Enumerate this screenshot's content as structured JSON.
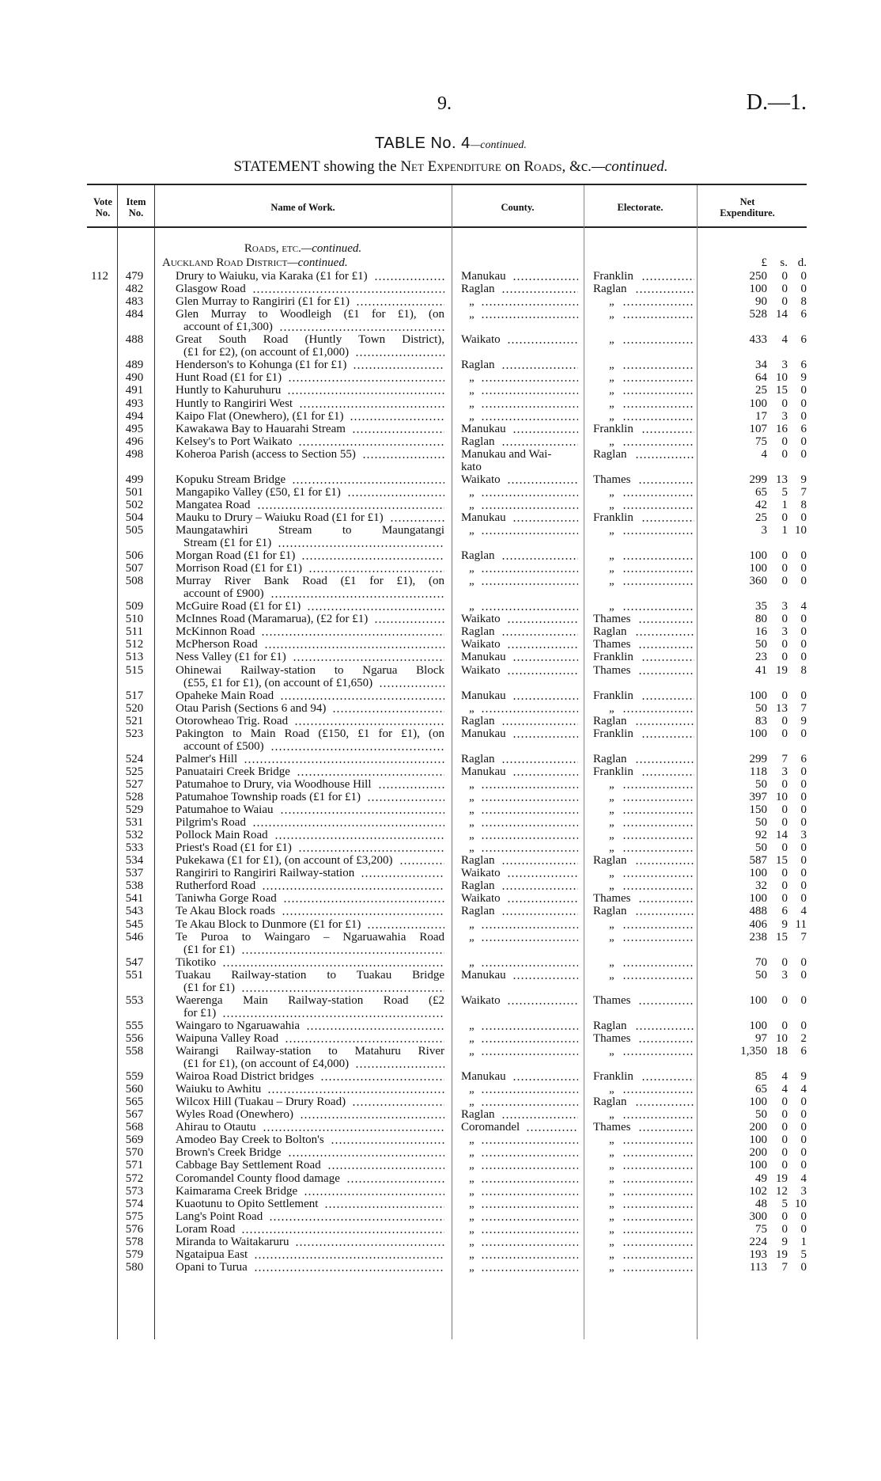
{
  "header": {
    "page_number": "9.",
    "doc_code": "D.—1."
  },
  "title": {
    "main": "TABLE No. 4",
    "suffix": "—continued."
  },
  "statement": {
    "lead": "STATEMENT showing the ",
    "sc1": "Net Expenditure",
    "mid": " on ",
    "sc2": "Roads",
    "tail": ", &c.",
    "cont": "—continued."
  },
  "columns": {
    "vote": "Vote No.",
    "item": "Item No.",
    "name": "Name of Work.",
    "county": "County.",
    "electorate": "Electorate.",
    "net": "Net Expenditure."
  },
  "section": {
    "heading": "Roads, etc.",
    "heading_cont": "—continued.",
    "district": "Auckland Road District",
    "district_cont": "—continued."
  },
  "units": {
    "pounds": "£",
    "shillings": "s.",
    "pence": "d."
  },
  "rows": [
    {
      "vote": "112",
      "item": "479",
      "name": [
        "Drury to Waiuku, via Karaka (£1 for £1)"
      ],
      "county": [
        "Manukau"
      ],
      "electorate": "Franklin",
      "l": "250",
      "s": "0",
      "d": "0"
    },
    {
      "item": "482",
      "name": [
        "Glasgow Road"
      ],
      "county": [
        "Raglan"
      ],
      "electorate": "Raglan",
      "l": "100",
      "s": "0",
      "d": "0"
    },
    {
      "item": "483",
      "name": [
        "Glen Murray to Rangiriri (£1 for £1)"
      ],
      "county": [
        "„"
      ],
      "electorate": "„",
      "l": "90",
      "s": "0",
      "d": "8"
    },
    {
      "item": "484",
      "name": [
        "Glen Murray to Woodleigh (£1 for £1), (on",
        "account of £1,300)"
      ],
      "county": [
        "„"
      ],
      "electorate": "„",
      "l": "528",
      "s": "14",
      "d": "6"
    },
    {
      "item": "488",
      "name": [
        "Great South Road (Huntly Town District),",
        "(£1 for £2), (on account of £1,000)"
      ],
      "county": [
        "Waikato"
      ],
      "electorate": "„",
      "l": "433",
      "s": "4",
      "d": "6"
    },
    {
      "item": "489",
      "name": [
        "Henderson's to Kohunga (£1 for £1)"
      ],
      "county": [
        "Raglan"
      ],
      "electorate": "„",
      "l": "34",
      "s": "3",
      "d": "6"
    },
    {
      "item": "490",
      "name": [
        "Hunt Road (£1 for £1)"
      ],
      "county": [
        "„"
      ],
      "electorate": "„",
      "l": "64",
      "s": "10",
      "d": "9"
    },
    {
      "item": "491",
      "name": [
        "Huntly to Kahuruhuru"
      ],
      "county": [
        "„"
      ],
      "electorate": "„",
      "l": "25",
      "s": "15",
      "d": "0"
    },
    {
      "item": "493",
      "name": [
        "Huntly to Rangiriri West"
      ],
      "county": [
        "„"
      ],
      "electorate": "„",
      "l": "100",
      "s": "0",
      "d": "0"
    },
    {
      "item": "494",
      "name": [
        "Kaipo Flat (Onewhero), (£1 for £1)"
      ],
      "county": [
        "„"
      ],
      "electorate": "„",
      "l": "17",
      "s": "3",
      "d": "0"
    },
    {
      "item": "495",
      "name": [
        "Kawakawa Bay to Hauarahi Stream"
      ],
      "county": [
        "Manukau"
      ],
      "electorate": "Franklin",
      "l": "107",
      "s": "16",
      "d": "6"
    },
    {
      "item": "496",
      "name": [
        "Kelsey's to Port Waikato"
      ],
      "county": [
        "Raglan"
      ],
      "electorate": "„",
      "l": "75",
      "s": "0",
      "d": "0"
    },
    {
      "item": "498",
      "name": [
        "Koheroa Parish (access to Section 55)"
      ],
      "county": [
        "Manukau and Wai-",
        "kato"
      ],
      "electorate": "Raglan",
      "l": "4",
      "s": "0",
      "d": "0"
    },
    {
      "item": "499",
      "name": [
        "Kopuku Stream Bridge"
      ],
      "county": [
        "Waikato"
      ],
      "electorate": "Thames",
      "l": "299",
      "s": "13",
      "d": "9"
    },
    {
      "item": "501",
      "name": [
        "Mangapiko Valley (£50, £1 for £1)"
      ],
      "county": [
        "„"
      ],
      "electorate": "„",
      "l": "65",
      "s": "5",
      "d": "7"
    },
    {
      "item": "502",
      "name": [
        "Mangatea Road"
      ],
      "county": [
        "„"
      ],
      "electorate": "„",
      "l": "42",
      "s": "1",
      "d": "8"
    },
    {
      "item": "504",
      "name": [
        "Mauku to Drury – Waiuku Road (£1 for £1)"
      ],
      "county": [
        "Manukau"
      ],
      "electorate": "Franklin",
      "l": "25",
      "s": "0",
      "d": "0"
    },
    {
      "item": "505",
      "name": [
        "Maungatawhiri Stream to Maungatangi",
        "Stream (£1 for £1)"
      ],
      "county": [
        "„"
      ],
      "electorate": "„",
      "l": "3",
      "s": "1",
      "d": "10"
    },
    {
      "item": "506",
      "name": [
        "Morgan Road (£1 for £1)"
      ],
      "county": [
        "Raglan"
      ],
      "electorate": "„",
      "l": "100",
      "s": "0",
      "d": "0"
    },
    {
      "item": "507",
      "name": [
        "Morrison Road (£1 for £1)"
      ],
      "county": [
        "„"
      ],
      "electorate": "„",
      "l": "100",
      "s": "0",
      "d": "0"
    },
    {
      "item": "508",
      "name": [
        "Murray River Bank Road (£1 for £1), (on",
        "account of £900)"
      ],
      "county": [
        "„"
      ],
      "electorate": "„",
      "l": "360",
      "s": "0",
      "d": "0"
    },
    {
      "item": "509",
      "name": [
        "McGuire Road (£1 for £1)"
      ],
      "county": [
        "„"
      ],
      "electorate": "„",
      "l": "35",
      "s": "3",
      "d": "4"
    },
    {
      "item": "510",
      "name": [
        "McInnes Road (Maramarua), (£2 for £1)"
      ],
      "county": [
        "Waikato"
      ],
      "electorate": "Thames",
      "l": "80",
      "s": "0",
      "d": "0"
    },
    {
      "item": "511",
      "name": [
        "McKinnon Road"
      ],
      "county": [
        "Raglan"
      ],
      "electorate": "Raglan",
      "l": "16",
      "s": "3",
      "d": "0"
    },
    {
      "item": "512",
      "name": [
        "McPherson Road"
      ],
      "county": [
        "Waikato"
      ],
      "electorate": "Thames",
      "l": "50",
      "s": "0",
      "d": "0"
    },
    {
      "item": "513",
      "name": [
        "Ness Valley (£1 for £1)"
      ],
      "county": [
        "Manukau"
      ],
      "electorate": "Franklin",
      "l": "23",
      "s": "0",
      "d": "0"
    },
    {
      "item": "515",
      "name": [
        "Ohinewai Railway-station to Ngarua Block",
        "(£55, £1 for £1), (on account of £1,650)"
      ],
      "county": [
        "Waikato"
      ],
      "electorate": "Thames",
      "l": "41",
      "s": "19",
      "d": "8"
    },
    {
      "item": "517",
      "name": [
        "Opaheke Main Road"
      ],
      "county": [
        "Manukau"
      ],
      "electorate": "Franklin",
      "l": "100",
      "s": "0",
      "d": "0"
    },
    {
      "item": "520",
      "name": [
        "Otau Parish (Sections 6 and 94)"
      ],
      "county": [
        "„"
      ],
      "electorate": "„",
      "l": "50",
      "s": "13",
      "d": "7"
    },
    {
      "item": "521",
      "name": [
        "Otorowheao Trig. Road"
      ],
      "county": [
        "Raglan"
      ],
      "electorate": "Raglan",
      "l": "83",
      "s": "0",
      "d": "9"
    },
    {
      "item": "523",
      "name": [
        "Pakington to Main Road (£150, £1 for £1), (on",
        "account of £500)"
      ],
      "county": [
        "Manukau"
      ],
      "electorate": "Franklin",
      "l": "100",
      "s": "0",
      "d": "0"
    },
    {
      "item": "524",
      "name": [
        "Palmer's Hill"
      ],
      "county": [
        "Raglan"
      ],
      "electorate": "Raglan",
      "l": "299",
      "s": "7",
      "d": "6"
    },
    {
      "item": "525",
      "name": [
        "Panuatairi Creek Bridge"
      ],
      "county": [
        "Manukau"
      ],
      "electorate": "Franklin",
      "l": "118",
      "s": "3",
      "d": "0"
    },
    {
      "item": "527",
      "name": [
        "Patumahoe to Drury, via Woodhouse Hill"
      ],
      "county": [
        "„"
      ],
      "electorate": "„",
      "l": "50",
      "s": "0",
      "d": "0"
    },
    {
      "item": "528",
      "name": [
        "Patumahoe Township roads (£1 for £1)"
      ],
      "county": [
        "„"
      ],
      "electorate": "„",
      "l": "397",
      "s": "10",
      "d": "0"
    },
    {
      "item": "529",
      "name": [
        "Patumahoe to Waiau"
      ],
      "county": [
        "„"
      ],
      "electorate": "„",
      "l": "150",
      "s": "0",
      "d": "0"
    },
    {
      "item": "531",
      "name": [
        "Pilgrim's Road"
      ],
      "county": [
        "„"
      ],
      "electorate": "„",
      "l": "50",
      "s": "0",
      "d": "0"
    },
    {
      "item": "532",
      "name": [
        "Pollock Main Road"
      ],
      "county": [
        "„"
      ],
      "electorate": "„",
      "l": "92",
      "s": "14",
      "d": "3"
    },
    {
      "item": "533",
      "name": [
        "Priest's Road (£1 for £1)"
      ],
      "county": [
        "„"
      ],
      "electorate": "„",
      "l": "50",
      "s": "0",
      "d": "0"
    },
    {
      "item": "534",
      "name": [
        "Pukekawa (£1 for £1), (on account of £3,200)"
      ],
      "county": [
        "Raglan"
      ],
      "electorate": "Raglan",
      "l": "587",
      "s": "15",
      "d": "0"
    },
    {
      "item": "537",
      "name": [
        "Rangiriri to Rangiriri Railway-station"
      ],
      "county": [
        "Waikato"
      ],
      "electorate": "„",
      "l": "100",
      "s": "0",
      "d": "0"
    },
    {
      "item": "538",
      "name": [
        "Rutherford Road"
      ],
      "county": [
        "Raglan"
      ],
      "electorate": "„",
      "l": "32",
      "s": "0",
      "d": "0"
    },
    {
      "item": "541",
      "name": [
        "Taniwha Gorge Road"
      ],
      "county": [
        "Waikato"
      ],
      "electorate": "Thames",
      "l": "100",
      "s": "0",
      "d": "0"
    },
    {
      "item": "543",
      "name": [
        "Te Akau Block roads"
      ],
      "county": [
        "Raglan"
      ],
      "electorate": "Raglan",
      "l": "488",
      "s": "6",
      "d": "4"
    },
    {
      "item": "545",
      "name": [
        "Te Akau Block to Dunmore (£1 for £1)"
      ],
      "county": [
        "„"
      ],
      "electorate": "„",
      "l": "406",
      "s": "9",
      "d": "11"
    },
    {
      "item": "546",
      "name": [
        "Te Puroa to Waingaro – Ngaruawahia Road",
        "(£1 for £1)"
      ],
      "county": [
        "„"
      ],
      "electorate": "„",
      "l": "238",
      "s": "15",
      "d": "7"
    },
    {
      "item": "547",
      "name": [
        "Tikotiko"
      ],
      "county": [
        "„"
      ],
      "electorate": "„",
      "l": "70",
      "s": "0",
      "d": "0"
    },
    {
      "item": "551",
      "name": [
        "Tuakau Railway-station to Tuakau Bridge",
        "(£1 for £1)"
      ],
      "county": [
        "Manukau"
      ],
      "electorate": "„",
      "l": "50",
      "s": "3",
      "d": "0"
    },
    {
      "item": "553",
      "name": [
        "Waerenga Main Railway-station Road (£2",
        "for £1)"
      ],
      "county": [
        "Waikato"
      ],
      "electorate": "Thames",
      "l": "100",
      "s": "0",
      "d": "0"
    },
    {
      "item": "555",
      "name": [
        "Waingaro to Ngaruawahia"
      ],
      "county": [
        "„"
      ],
      "electorate": "Raglan",
      "l": "100",
      "s": "0",
      "d": "0"
    },
    {
      "item": "556",
      "name": [
        "Waipuna Valley Road"
      ],
      "county": [
        "„"
      ],
      "electorate": "Thames",
      "l": "97",
      "s": "10",
      "d": "2"
    },
    {
      "item": "558",
      "name": [
        "Wairangi Railway-station to Matahuru River",
        "(£1 for £1), (on account of £4,000)"
      ],
      "county": [
        "„"
      ],
      "electorate": "„",
      "l": "1,350",
      "s": "18",
      "d": "6"
    },
    {
      "item": "559",
      "name": [
        "Wairoa Road District bridges"
      ],
      "county": [
        "Manukau"
      ],
      "electorate": "Franklin",
      "l": "85",
      "s": "4",
      "d": "9"
    },
    {
      "item": "560",
      "name": [
        "Waiuku to Awhitu"
      ],
      "county": [
        "„"
      ],
      "electorate": "„",
      "l": "65",
      "s": "4",
      "d": "4"
    },
    {
      "item": "565",
      "name": [
        "Wilcox Hill (Tuakau – Drury Road)"
      ],
      "county": [
        "„"
      ],
      "electorate": "Raglan",
      "l": "100",
      "s": "0",
      "d": "0"
    },
    {
      "item": "567",
      "name": [
        "Wyles Road (Onewhero)"
      ],
      "county": [
        "Raglan"
      ],
      "electorate": "„",
      "l": "50",
      "s": "0",
      "d": "0"
    },
    {
      "item": "568",
      "name": [
        "Ahirau to Otautu"
      ],
      "county": [
        "Coromandel"
      ],
      "electorate": "Thames",
      "l": "200",
      "s": "0",
      "d": "0"
    },
    {
      "item": "569",
      "name": [
        "Amodeo Bay Creek to Bolton's"
      ],
      "county": [
        "„"
      ],
      "electorate": "„",
      "l": "100",
      "s": "0",
      "d": "0"
    },
    {
      "item": "570",
      "name": [
        "Brown's Creek Bridge"
      ],
      "county": [
        "„"
      ],
      "electorate": "„",
      "l": "200",
      "s": "0",
      "d": "0"
    },
    {
      "item": "571",
      "name": [
        "Cabbage Bay Settlement Road"
      ],
      "county": [
        "„"
      ],
      "electorate": "„",
      "l": "100",
      "s": "0",
      "d": "0"
    },
    {
      "item": "572",
      "name": [
        "Coromandel County flood damage"
      ],
      "county": [
        "„"
      ],
      "electorate": "„",
      "l": "49",
      "s": "19",
      "d": "4"
    },
    {
      "item": "573",
      "name": [
        "Kaimarama Creek Bridge"
      ],
      "county": [
        "„"
      ],
      "electorate": "„",
      "l": "102",
      "s": "12",
      "d": "3"
    },
    {
      "item": "574",
      "name": [
        "Kuaotunu to Opito Settlement"
      ],
      "county": [
        "„"
      ],
      "electorate": "„",
      "l": "48",
      "s": "5",
      "d": "10"
    },
    {
      "item": "575",
      "name": [
        "Lang's Point Road"
      ],
      "county": [
        "„"
      ],
      "electorate": "„",
      "l": "300",
      "s": "0",
      "d": "0"
    },
    {
      "item": "576",
      "name": [
        "Loram Road"
      ],
      "county": [
        "„"
      ],
      "electorate": "„",
      "l": "75",
      "s": "0",
      "d": "0"
    },
    {
      "item": "578",
      "name": [
        "Miranda to Waitakaruru"
      ],
      "county": [
        "„"
      ],
      "electorate": "„",
      "l": "224",
      "s": "9",
      "d": "1"
    },
    {
      "item": "579",
      "name": [
        "Ngataipua East"
      ],
      "county": [
        "„"
      ],
      "electorate": "„",
      "l": "193",
      "s": "19",
      "d": "5"
    },
    {
      "item": "580",
      "name": [
        "Opani to Turua"
      ],
      "county": [
        "„"
      ],
      "electorate": "„",
      "l": "113",
      "s": "7",
      "d": "0"
    }
  ]
}
